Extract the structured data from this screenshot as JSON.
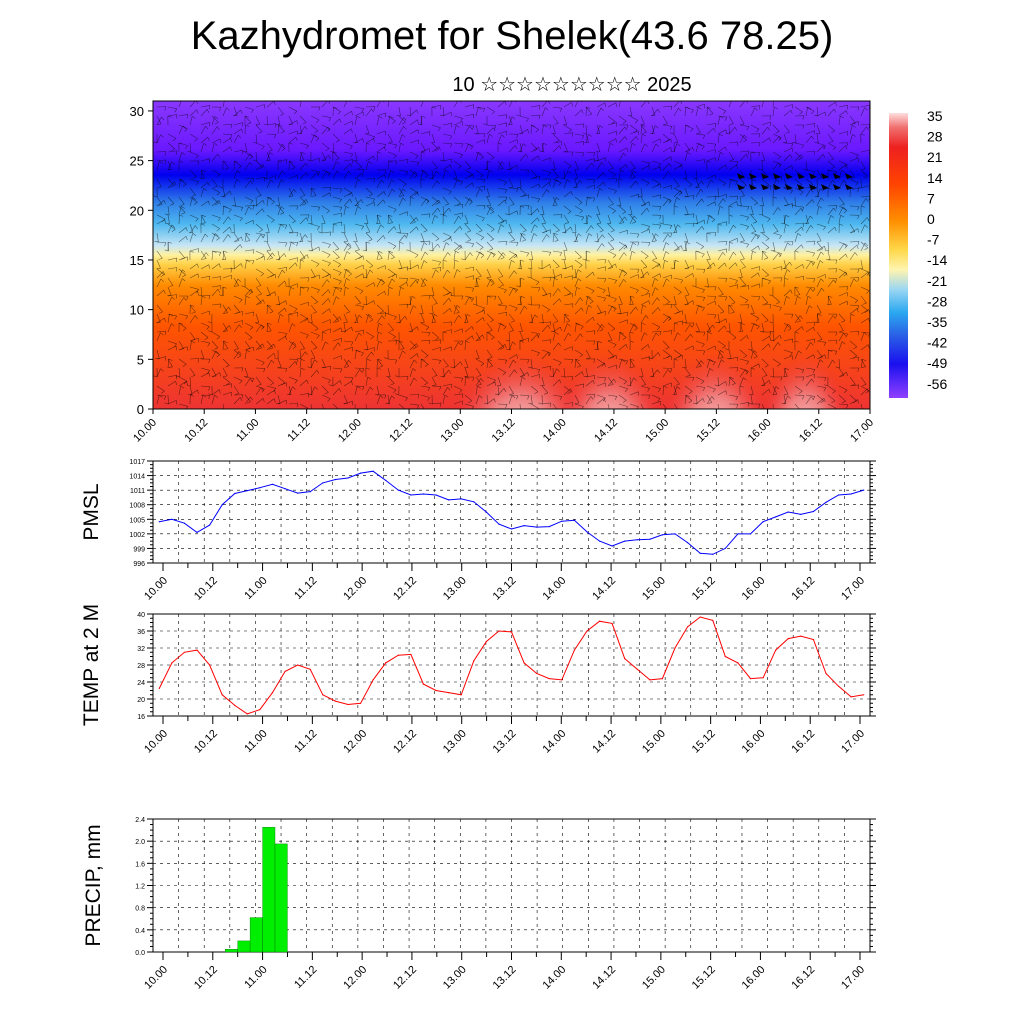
{
  "header": {
    "title": "Kazhydromet for Shelek(43.6 78.25)",
    "subtitle": "10 ☆☆☆☆☆☆☆☆☆ 2025"
  },
  "chart_data": [
    {
      "type": "heatmap",
      "name": "temperature-cross-section",
      "xlabel": "",
      "ylabel": "",
      "x_ticks": [
        "10.00",
        "10.12",
        "11.00",
        "11.12",
        "12.00",
        "12.12",
        "13.00",
        "13.12",
        "14.00",
        "14.12",
        "15.00",
        "15.12",
        "16.00",
        "16.12",
        "17.00"
      ],
      "y_ticks": [
        0,
        5,
        10,
        15,
        20,
        25,
        30
      ],
      "ylim": [
        0,
        31
      ],
      "colorbar": {
        "labels": [
          "35",
          "28",
          "21",
          "14",
          "7",
          "0",
          "-7",
          "-14",
          "-21",
          "-28",
          "-35",
          "-42",
          "-49",
          "-56"
        ],
        "range": [
          -63,
          42
        ]
      },
      "description": "temperature field with wind barbs overlay"
    },
    {
      "type": "line",
      "name": "pmsl",
      "ylabel": "PMSL",
      "ylim": [
        996,
        1017
      ],
      "y_ticks": [
        996,
        999,
        1002,
        1005,
        1008,
        1011,
        1014,
        1017
      ],
      "x_ticks": [
        "10.00",
        "10.12",
        "11.00",
        "11.12",
        "12.00",
        "12.12",
        "13.00",
        "13.12",
        "14.00",
        "14.12",
        "15.00",
        "15.12",
        "16.00",
        "16.12",
        "17.00"
      ],
      "color": "#0000ff",
      "values": [
        1004.5,
        1005.0,
        1004.2,
        1002.3,
        1003.8,
        1008.0,
        1010.3,
        1010.9,
        1011.5,
        1012.2,
        1011.3,
        1010.4,
        1010.7,
        1012.5,
        1013.2,
        1013.5,
        1014.5,
        1014.9,
        1013.0,
        1011.0,
        1010.0,
        1010.2,
        1010.0,
        1009.0,
        1009.2,
        1008.6,
        1006.5,
        1004.0,
        1003.0,
        1003.7,
        1003.4,
        1003.5,
        1004.6,
        1004.8,
        1002.4,
        1000.5,
        999.5,
        1000.5,
        1000.8,
        1000.9,
        1001.8,
        1002.0,
        1000.2,
        998.0,
        997.8,
        999.0,
        1002.0,
        1002.0,
        1004.5,
        1005.5,
        1006.5,
        1006.0,
        1006.6,
        1008.5,
        1010.0,
        1010.2,
        1011.0
      ]
    },
    {
      "type": "line",
      "name": "temp-2m",
      "ylabel": "TEMP at 2 M",
      "ylim": [
        16,
        40
      ],
      "y_ticks": [
        16,
        20,
        24,
        28,
        32,
        36,
        40
      ],
      "x_ticks": [
        "10.00",
        "10.12",
        "11.00",
        "11.12",
        "12.00",
        "12.12",
        "13.00",
        "13.12",
        "14.00",
        "14.12",
        "15.00",
        "15.12",
        "16.00",
        "16.12",
        "17.00"
      ],
      "color": "#ff0000",
      "values": [
        22.5,
        28.5,
        31.0,
        31.5,
        28.0,
        21.0,
        18.5,
        16.5,
        17.5,
        21.5,
        26.5,
        28.0,
        27.0,
        21.0,
        19.5,
        18.7,
        19.0,
        24.5,
        28.5,
        30.3,
        30.5,
        23.5,
        22.0,
        21.5,
        21.0,
        29.0,
        33.5,
        36.0,
        35.8,
        28.5,
        26.0,
        24.8,
        24.5,
        31.5,
        36.0,
        38.3,
        37.8,
        29.5,
        27.0,
        24.5,
        24.8,
        32.0,
        37.0,
        39.3,
        38.5,
        30.0,
        28.5,
        24.8,
        25.0,
        31.5,
        34.2,
        34.8,
        34.0,
        26.0,
        23.0,
        20.5,
        21.0
      ]
    },
    {
      "type": "bar",
      "name": "precip",
      "ylabel": "PRECIP, mm",
      "ylim": [
        0,
        2.4
      ],
      "y_ticks": [
        "0.0",
        "0.4",
        "0.8",
        "1.2",
        "1.6",
        "2.0",
        "2.4"
      ],
      "x_ticks": [
        "10.00",
        "10.12",
        "11.00",
        "11.12",
        "12.00",
        "12.12",
        "13.00",
        "13.12",
        "14.00",
        "14.12",
        "15.00",
        "15.12",
        "16.00",
        "16.12",
        "17.00"
      ],
      "color": "#00ee00",
      "values": [
        0,
        0,
        0,
        0,
        0,
        0.05,
        0.2,
        0.62,
        2.25,
        1.95,
        0,
        0,
        0,
        0,
        0,
        0,
        0,
        0,
        0,
        0,
        0,
        0,
        0,
        0,
        0,
        0,
        0,
        0,
        0,
        0,
        0,
        0,
        0,
        0,
        0,
        0,
        0,
        0,
        0,
        0,
        0,
        0,
        0,
        0,
        0,
        0,
        0,
        0,
        0,
        0,
        0,
        0,
        0,
        0,
        0,
        0,
        0
      ]
    }
  ]
}
